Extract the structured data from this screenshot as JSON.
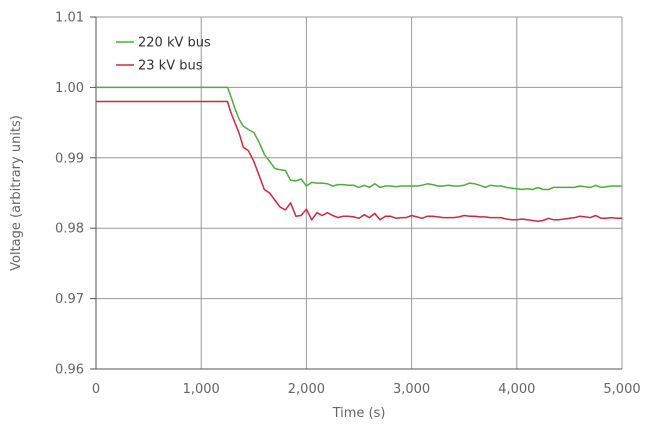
{
  "chart_data": {
    "type": "line",
    "title": "",
    "xlabel": "Time (s)",
    "ylabel": "Voltage (arbitrary units)",
    "xlim": [
      0,
      5000
    ],
    "ylim": [
      0.96,
      1.01
    ],
    "x_ticks": [
      0,
      1000,
      2000,
      3000,
      4000,
      5000
    ],
    "x_tick_labels": [
      "0",
      "1,000",
      "2,000",
      "3,000",
      "4,000",
      "5,000"
    ],
    "y_ticks": [
      0.96,
      0.97,
      0.98,
      0.99,
      1.0,
      1.01
    ],
    "y_tick_labels": [
      "0.96",
      "0.97",
      "0.98",
      "0.99",
      "1.00",
      "1.01"
    ],
    "grid": true,
    "legend_position": "top-left",
    "series": [
      {
        "name": "220 kV bus",
        "color": "#4caf3a",
        "x": [
          0,
          1250,
          1280,
          1320,
          1360,
          1400,
          1450,
          1500,
          1550,
          1600,
          1650,
          1700,
          1750,
          1800,
          1850,
          1900,
          1950,
          2000,
          2050,
          2100,
          2150,
          2200,
          2250,
          2300,
          2350,
          2400,
          2450,
          2500,
          2550,
          2600,
          2650,
          2700,
          2750,
          2800,
          2850,
          2900,
          2950,
          3000,
          3050,
          3100,
          3150,
          3200,
          3250,
          3300,
          3350,
          3400,
          3450,
          3500,
          3550,
          3600,
          3650,
          3700,
          3750,
          3800,
          3850,
          3900,
          3950,
          4000,
          4050,
          4100,
          4150,
          4200,
          4250,
          4300,
          4350,
          4400,
          4450,
          4500,
          4550,
          4600,
          4650,
          4700,
          4750,
          4800,
          4850,
          4900,
          4950,
          5000
        ],
        "y": [
          1.0,
          1.0,
          0.9988,
          0.997,
          0.9955,
          0.9945,
          0.994,
          0.9936,
          0.9922,
          0.9905,
          0.9895,
          0.9885,
          0.9883,
          0.9882,
          0.9868,
          0.9867,
          0.987,
          0.986,
          0.9865,
          0.9864,
          0.9864,
          0.9863,
          0.986,
          0.9862,
          0.9862,
          0.9861,
          0.9861,
          0.9858,
          0.9861,
          0.9858,
          0.9863,
          0.9858,
          0.986,
          0.986,
          0.9859,
          0.986,
          0.986,
          0.986,
          0.986,
          0.9861,
          0.9863,
          0.9862,
          0.986,
          0.986,
          0.9861,
          0.986,
          0.986,
          0.9861,
          0.9864,
          0.9863,
          0.9861,
          0.9858,
          0.9861,
          0.986,
          0.986,
          0.9858,
          0.9857,
          0.9856,
          0.9855,
          0.9856,
          0.9855,
          0.9858,
          0.9855,
          0.9855,
          0.9858,
          0.9858,
          0.9858,
          0.9858,
          0.9858,
          0.986,
          0.9859,
          0.9858,
          0.9861,
          0.9858,
          0.9859,
          0.986,
          0.986,
          0.986
        ]
      },
      {
        "name": "23 kV bus",
        "color": "#d7263d",
        "x": [
          0,
          1250,
          1280,
          1320,
          1360,
          1400,
          1450,
          1500,
          1550,
          1600,
          1650,
          1700,
          1750,
          1800,
          1850,
          1900,
          1950,
          2000,
          2050,
          2100,
          2150,
          2200,
          2250,
          2300,
          2350,
          2400,
          2450,
          2500,
          2550,
          2600,
          2650,
          2700,
          2750,
          2800,
          2850,
          2900,
          2950,
          3000,
          3050,
          3100,
          3150,
          3200,
          3250,
          3300,
          3350,
          3400,
          3450,
          3500,
          3550,
          3600,
          3650,
          3700,
          3750,
          3800,
          3850,
          3900,
          3950,
          4000,
          4050,
          4100,
          4150,
          4200,
          4250,
          4300,
          4350,
          4400,
          4450,
          4500,
          4550,
          4600,
          4650,
          4700,
          4750,
          4800,
          4850,
          4900,
          4950,
          5000
        ],
        "y": [
          0.998,
          0.998,
          0.9965,
          0.995,
          0.9935,
          0.9915,
          0.991,
          0.9895,
          0.9875,
          0.9855,
          0.985,
          0.984,
          0.983,
          0.9826,
          0.9836,
          0.9817,
          0.9818,
          0.9827,
          0.9812,
          0.9822,
          0.9818,
          0.9822,
          0.9818,
          0.9815,
          0.9817,
          0.9817,
          0.9816,
          0.9814,
          0.9819,
          0.9815,
          0.9821,
          0.9812,
          0.9817,
          0.9817,
          0.9814,
          0.9815,
          0.9815,
          0.9818,
          0.9816,
          0.9814,
          0.9817,
          0.9817,
          0.9816,
          0.9815,
          0.9815,
          0.9815,
          0.9816,
          0.9818,
          0.9817,
          0.9817,
          0.9816,
          0.9816,
          0.9815,
          0.9815,
          0.9815,
          0.9813,
          0.9812,
          0.9812,
          0.9813,
          0.9812,
          0.9811,
          0.981,
          0.9811,
          0.9814,
          0.9812,
          0.9812,
          0.9813,
          0.9814,
          0.9815,
          0.9817,
          0.9816,
          0.9815,
          0.9818,
          0.9814,
          0.9814,
          0.9815,
          0.9814,
          0.9814
        ]
      }
    ]
  }
}
